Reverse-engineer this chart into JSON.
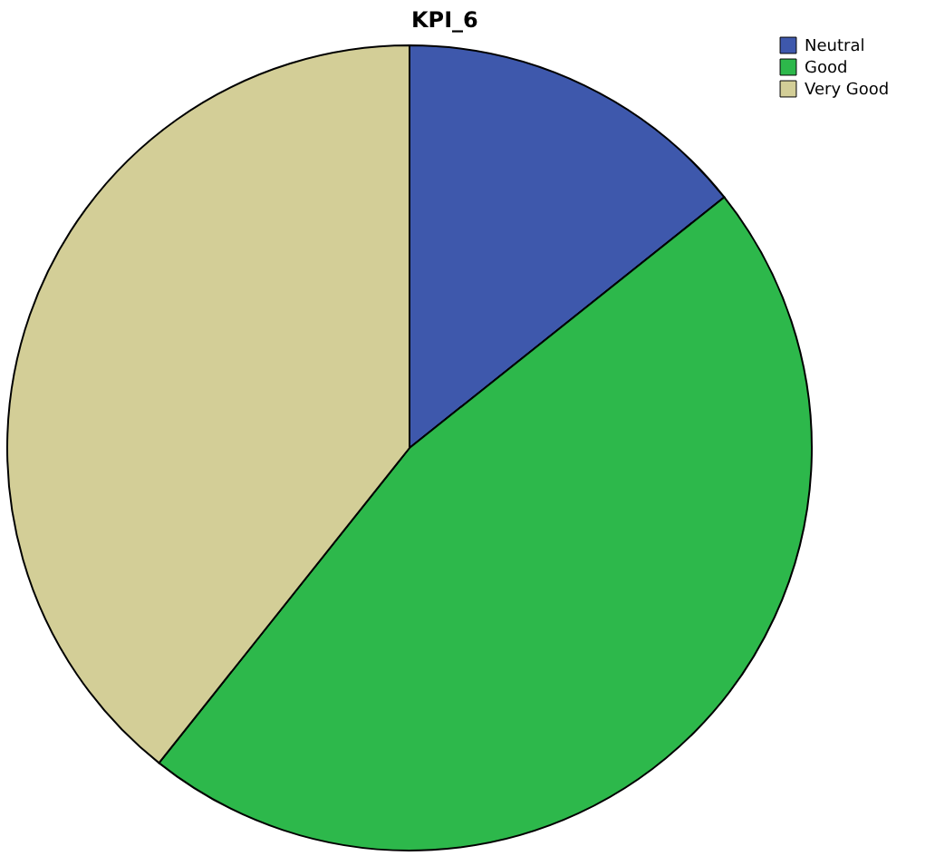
{
  "chart_data": {
    "type": "pie",
    "title": "KPI_6",
    "categories": [
      "Neutral",
      "Good",
      "Very Good"
    ],
    "values": [
      14.3,
      46.4,
      39.3
    ],
    "colors": [
      "#3e58ac",
      "#2db84b",
      "#d3ce97"
    ],
    "legend": "top right"
  }
}
